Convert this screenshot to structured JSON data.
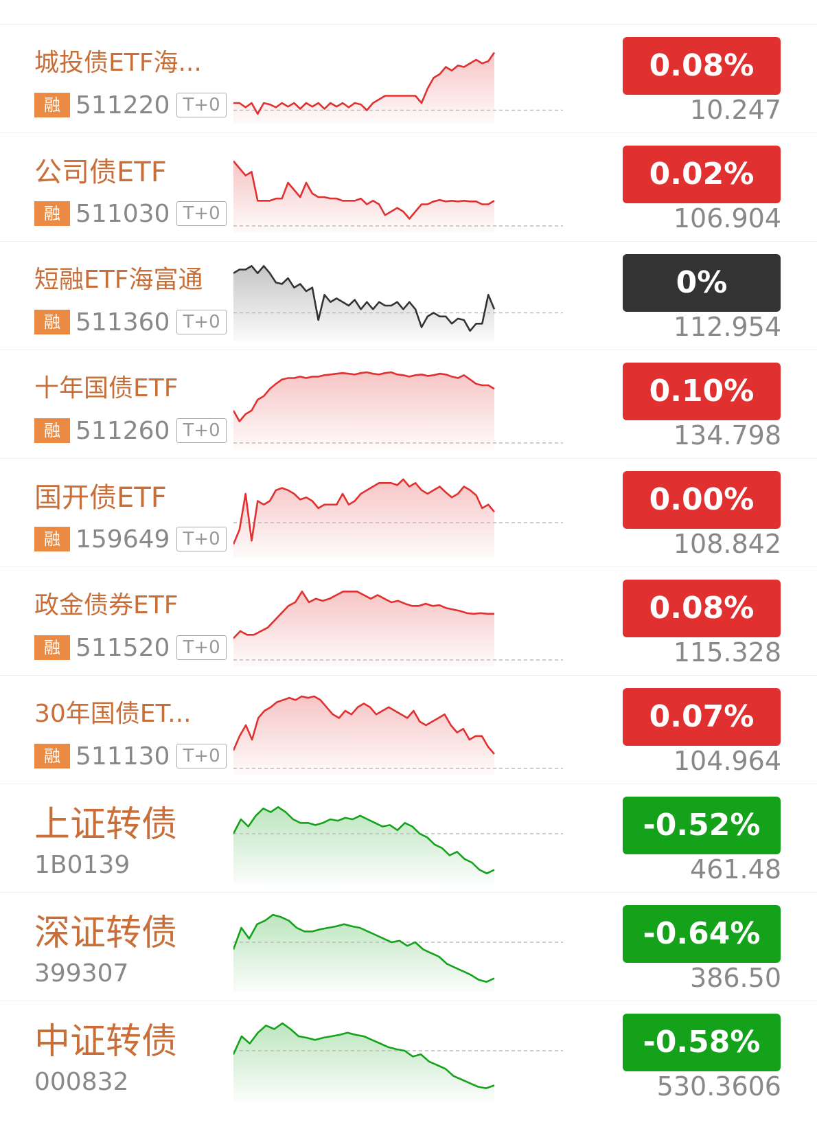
{
  "colors": {
    "up": "#e03030",
    "down": "#13a21a",
    "flat": "#333333",
    "name_text": "#c86e38",
    "rong_badge": "#ea8a43"
  },
  "rows": [
    {
      "name": "城投债ETF海...",
      "tag": "融",
      "code": "511220",
      "t0": "T+0",
      "change": "0.08%",
      "price": "10.247",
      "status": "up",
      "baseline": 0.9,
      "points": [
        0.8,
        0.8,
        0.86,
        0.8,
        0.95,
        0.8,
        0.82,
        0.86,
        0.8,
        0.85,
        0.8,
        0.88,
        0.8,
        0.85,
        0.8,
        0.88,
        0.8,
        0.85,
        0.8,
        0.86,
        0.8,
        0.82,
        0.9,
        0.8,
        0.75,
        0.7,
        0.7,
        0.7,
        0.7,
        0.7,
        0.7,
        0.8,
        0.6,
        0.45,
        0.4,
        0.3,
        0.35,
        0.28,
        0.3,
        0.25,
        0.2,
        0.25,
        0.22,
        0.1
      ]
    },
    {
      "name": "公司债ETF",
      "tag": "融",
      "code": "511030",
      "t0": "T+0",
      "change": "0.02%",
      "price": "106.904",
      "status": "up",
      "baseline": 1.0,
      "points": [
        0.1,
        0.2,
        0.3,
        0.25,
        0.65,
        0.65,
        0.65,
        0.62,
        0.62,
        0.4,
        0.5,
        0.6,
        0.4,
        0.55,
        0.6,
        0.6,
        0.62,
        0.62,
        0.65,
        0.65,
        0.65,
        0.62,
        0.7,
        0.65,
        0.7,
        0.85,
        0.8,
        0.75,
        0.8,
        0.9,
        0.8,
        0.7,
        0.7,
        0.66,
        0.64,
        0.66,
        0.65,
        0.66,
        0.65,
        0.66,
        0.66,
        0.7,
        0.7,
        0.65
      ]
    },
    {
      "name": "短融ETF海富通",
      "tag": "融",
      "code": "511360",
      "t0": "T+0",
      "change": "0%",
      "price": "112.954",
      "status": "flat",
      "baseline": 0.7,
      "points": [
        0.15,
        0.1,
        0.1,
        0.05,
        0.15,
        0.05,
        0.15,
        0.28,
        0.3,
        0.22,
        0.35,
        0.3,
        0.4,
        0.35,
        0.8,
        0.45,
        0.55,
        0.5,
        0.55,
        0.6,
        0.52,
        0.65,
        0.55,
        0.65,
        0.55,
        0.6,
        0.6,
        0.55,
        0.65,
        0.55,
        0.65,
        0.9,
        0.75,
        0.7,
        0.75,
        0.75,
        0.85,
        0.78,
        0.8,
        0.95,
        0.85,
        0.85,
        0.45,
        0.65
      ]
    },
    {
      "name": "十年国债ETF",
      "tag": "融",
      "code": "511260",
      "t0": "T+0",
      "change": "0.10%",
      "price": "134.798",
      "status": "up",
      "baseline": 1.0,
      "points": [
        0.55,
        0.7,
        0.6,
        0.55,
        0.4,
        0.35,
        0.25,
        0.18,
        0.12,
        0.1,
        0.1,
        0.08,
        0.1,
        0.08,
        0.08,
        0.06,
        0.05,
        0.04,
        0.03,
        0.04,
        0.05,
        0.03,
        0.02,
        0.04,
        0.05,
        0.03,
        0.02,
        0.05,
        0.06,
        0.08,
        0.06,
        0.05,
        0.07,
        0.06,
        0.04,
        0.05,
        0.08,
        0.1,
        0.06,
        0.12,
        0.18,
        0.2,
        0.2,
        0.25
      ]
    },
    {
      "name": "国开债ETF",
      "tag": "融",
      "code": "159649",
      "t0": "T+0",
      "change": "0.00%",
      "price": "108.842",
      "status": "up",
      "baseline": 0.6,
      "points": [
        0.9,
        0.7,
        0.2,
        0.85,
        0.3,
        0.35,
        0.3,
        0.15,
        0.12,
        0.15,
        0.2,
        0.28,
        0.25,
        0.3,
        0.4,
        0.35,
        0.35,
        0.35,
        0.2,
        0.35,
        0.3,
        0.2,
        0.15,
        0.1,
        0.05,
        0.05,
        0.05,
        0.08,
        0.0,
        0.1,
        0.05,
        0.15,
        0.2,
        0.15,
        0.1,
        0.18,
        0.25,
        0.2,
        0.1,
        0.15,
        0.22,
        0.4,
        0.35,
        0.45
      ]
    },
    {
      "name": "政金债券ETF",
      "tag": "融",
      "code": "511520",
      "t0": "T+0",
      "change": "0.08%",
      "price": "115.328",
      "status": "up",
      "baseline": 1.0,
      "points": [
        0.7,
        0.6,
        0.65,
        0.65,
        0.6,
        0.55,
        0.45,
        0.35,
        0.25,
        0.2,
        0.05,
        0.2,
        0.15,
        0.18,
        0.15,
        0.1,
        0.05,
        0.05,
        0.05,
        0.1,
        0.15,
        0.1,
        0.15,
        0.2,
        0.18,
        0.22,
        0.25,
        0.25,
        0.22,
        0.25,
        0.24,
        0.28,
        0.3,
        0.32,
        0.35,
        0.36,
        0.35,
        0.36,
        0.36
      ]
    },
    {
      "name": "30年国债ET...",
      "tag": "融",
      "code": "511130",
      "t0": "T+0",
      "change": "0.07%",
      "price": "104.964",
      "status": "up",
      "baseline": 1.0,
      "points": [
        0.75,
        0.55,
        0.4,
        0.6,
        0.3,
        0.2,
        0.15,
        0.08,
        0.05,
        0.02,
        0.05,
        0.0,
        0.02,
        0.0,
        0.05,
        0.15,
        0.25,
        0.3,
        0.2,
        0.25,
        0.15,
        0.1,
        0.15,
        0.25,
        0.2,
        0.15,
        0.2,
        0.25,
        0.3,
        0.2,
        0.35,
        0.4,
        0.35,
        0.3,
        0.25,
        0.4,
        0.5,
        0.45,
        0.6,
        0.55,
        0.55,
        0.7,
        0.8
      ]
    },
    {
      "name": "上证转债",
      "tag": "",
      "code": "1B0139",
      "t0": "",
      "change": "-0.52%",
      "price": "461.48",
      "status": "down",
      "baseline": 0.4,
      "points": [
        0.4,
        0.2,
        0.3,
        0.15,
        0.05,
        0.1,
        0.03,
        0.1,
        0.2,
        0.25,
        0.25,
        0.28,
        0.25,
        0.2,
        0.22,
        0.18,
        0.2,
        0.15,
        0.2,
        0.25,
        0.3,
        0.28,
        0.35,
        0.25,
        0.3,
        0.4,
        0.45,
        0.55,
        0.6,
        0.7,
        0.65,
        0.75,
        0.8,
        0.9,
        0.95,
        0.9
      ]
    },
    {
      "name": "深证转债",
      "tag": "",
      "code": "399307",
      "t0": "",
      "change": "-0.64%",
      "price": "386.50",
      "status": "down",
      "baseline": 0.4,
      "points": [
        0.5,
        0.2,
        0.35,
        0.15,
        0.1,
        0.02,
        0.05,
        0.1,
        0.2,
        0.25,
        0.25,
        0.22,
        0.2,
        0.18,
        0.15,
        0.18,
        0.2,
        0.25,
        0.3,
        0.35,
        0.4,
        0.38,
        0.45,
        0.4,
        0.5,
        0.55,
        0.6,
        0.7,
        0.75,
        0.8,
        0.85,
        0.92,
        0.95,
        0.9
      ]
    },
    {
      "name": "中证转债",
      "tag": "",
      "code": "000832",
      "t0": "",
      "change": "-0.58%",
      "price": "530.3606",
      "status": "down",
      "baseline": 0.4,
      "points": [
        0.45,
        0.2,
        0.3,
        0.15,
        0.05,
        0.1,
        0.02,
        0.1,
        0.2,
        0.22,
        0.25,
        0.22,
        0.2,
        0.18,
        0.15,
        0.18,
        0.2,
        0.25,
        0.3,
        0.35,
        0.38,
        0.4,
        0.48,
        0.45,
        0.55,
        0.6,
        0.65,
        0.75,
        0.8,
        0.85,
        0.9,
        0.92,
        0.88
      ]
    }
  ]
}
